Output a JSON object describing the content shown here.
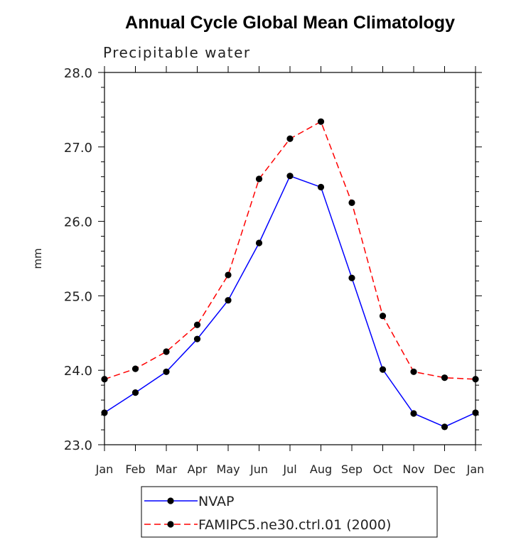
{
  "chart_data": {
    "type": "line",
    "title": "Annual Cycle Global Mean Climatology",
    "subtitle": "Precipitable water",
    "xlabel": "",
    "ylabel": "mm",
    "categories": [
      "Jan",
      "Feb",
      "Mar",
      "Apr",
      "May",
      "Jun",
      "Jul",
      "Aug",
      "Sep",
      "Oct",
      "Nov",
      "Dec",
      "Jan"
    ],
    "ylim": [
      23.0,
      28.0
    ],
    "yticks": [
      "23.0",
      "24.0",
      "25.0",
      "26.0",
      "27.0",
      "28.0"
    ],
    "series": [
      {
        "name": "NVAP",
        "color": "#0000ff",
        "line_style": "solid",
        "marker": "filled-circle",
        "values": [
          23.43,
          23.7,
          23.98,
          24.42,
          24.94,
          25.71,
          26.61,
          26.46,
          25.24,
          24.01,
          23.42,
          23.24,
          23.43
        ]
      },
      {
        "name": "FAMIPC5.ne30.ctrl.01 (2000)",
        "color": "#ff0000",
        "line_style": "dashed",
        "marker": "filled-circle",
        "values": [
          23.88,
          24.02,
          24.25,
          24.61,
          25.28,
          26.57,
          27.11,
          27.34,
          26.25,
          24.73,
          23.98,
          23.9,
          23.88
        ]
      }
    ],
    "grid": false,
    "legend_position": "bottom"
  }
}
